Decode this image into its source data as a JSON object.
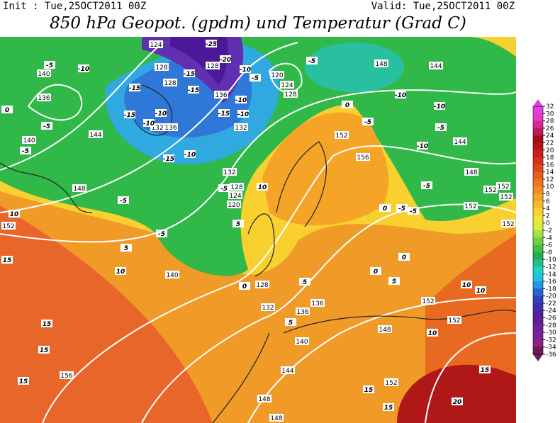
{
  "header": {
    "init": "Init : Tue,25OCT2011 00Z",
    "valid": "Valid: Tue,25OCT2011 00Z",
    "title": "850 hPa Geopot. (gpdm) und Temperatur (Grad C)"
  },
  "colorbar": {
    "labels": [
      32,
      30,
      28,
      26,
      24,
      22,
      20,
      18,
      16,
      14,
      12,
      10,
      8,
      6,
      4,
      2,
      0,
      -2,
      -4,
      -6,
      -8,
      -10,
      -12,
      -14,
      -16,
      -18,
      -20,
      -22,
      -24,
      -26,
      -28,
      -30,
      -32,
      -34,
      -36
    ],
    "colors": [
      "#e040e0",
      "#e838c8",
      "#d82890",
      "#c01860",
      "#a01010",
      "#b41616",
      "#c82020",
      "#d83020",
      "#e04420",
      "#e85c20",
      "#f07420",
      "#f08c20",
      "#f5a424",
      "#f8bc28",
      "#f8d430",
      "#f0e43c",
      "#d8ec44",
      "#a8e040",
      "#70d040",
      "#40c040",
      "#20b050",
      "#20c090",
      "#20d0c0",
      "#20c0e0",
      "#2098e0",
      "#2068d0",
      "#3040c0",
      "#4030b0",
      "#5020a0",
      "#602090",
      "#7020a0",
      "#8020a0",
      "#902080",
      "#701858"
    ]
  },
  "map": {
    "geopotential_labels": [
      "124",
      "128",
      "128",
      "128",
      "136",
      "132",
      "136",
      "132",
      "120",
      "124",
      "128",
      "148",
      "144",
      "140",
      "136",
      "140",
      "144",
      "148",
      "152",
      "156",
      "148",
      "144",
      "132",
      "128",
      "124",
      "120",
      "152",
      "152",
      "152",
      "152",
      "152",
      "152",
      "140",
      "128",
      "132",
      "136",
      "136",
      "140",
      "144",
      "148",
      "152",
      "152",
      "156",
      "152",
      "148",
      "148"
    ],
    "temperature_labels": [
      "-25",
      "-20",
      "-5",
      "-10",
      "-15",
      "-15",
      "-15",
      "-10",
      "-5",
      "-10",
      "-5",
      "-10",
      "-10",
      "-5",
      "-5",
      "-10",
      "0",
      "-5",
      "-15",
      "-10",
      "-10",
      "-15",
      "-10",
      "-10",
      "-15",
      "-5",
      "-5",
      "-5",
      "-5",
      "0",
      "-5",
      "0",
      "-5",
      "-5",
      "10",
      "15",
      "5",
      "10",
      "10",
      "5",
      "0",
      "0",
      "0",
      "5",
      "5",
      "5",
      "10",
      "10",
      "15",
      "15",
      "15",
      "15",
      "10",
      "20",
      "15",
      "15"
    ]
  }
}
